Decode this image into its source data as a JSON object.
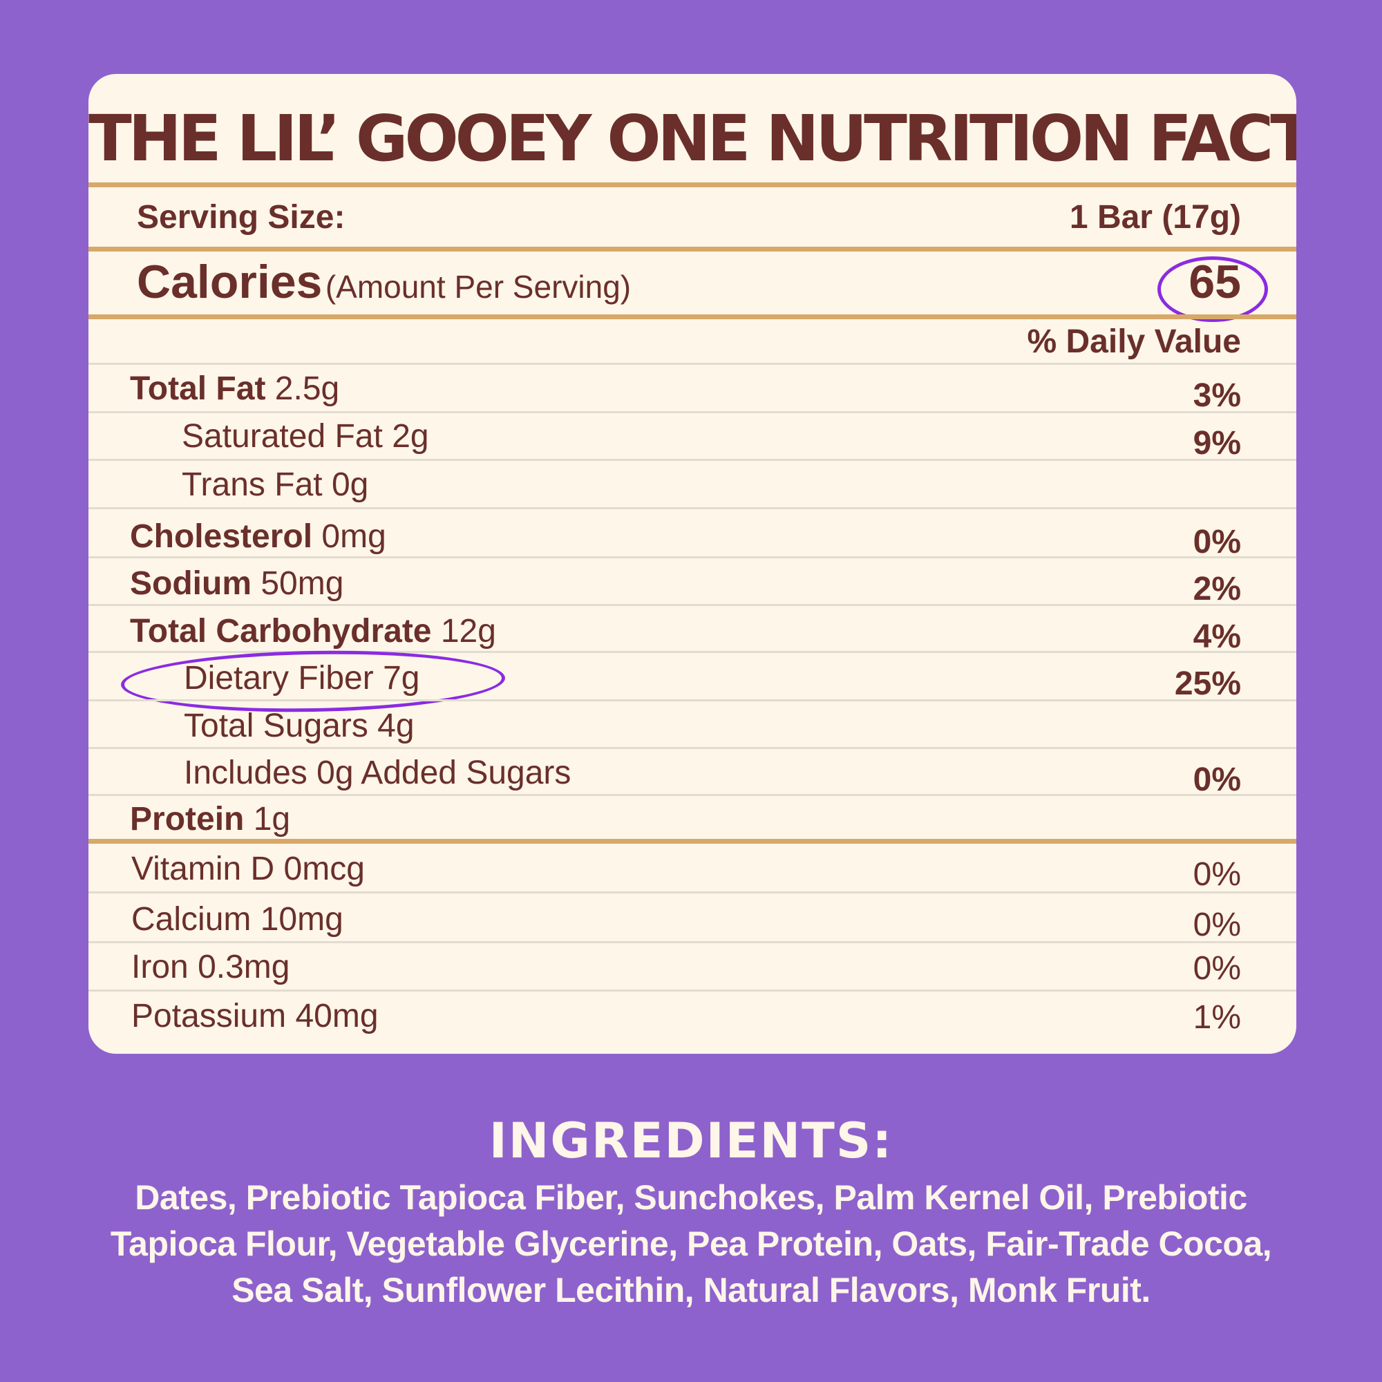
{
  "title": "THE LIL’ GOOEY ONE NUTRITION FACTS",
  "serving": {
    "label": "Serving Size:",
    "value": "1 Bar (17g)"
  },
  "calories": {
    "label": "Calories",
    "sub": "(Amount Per Serving)",
    "value": "65"
  },
  "daily_value_header": "% Daily Value",
  "nutrients": [
    {
      "name": "Total Fat",
      "amount": "2.5g",
      "dv": "3%"
    },
    {
      "name": "Saturated Fat",
      "amount": "2g",
      "dv": "9%"
    },
    {
      "name": "Trans Fat",
      "amount": "0g",
      "dv": ""
    },
    {
      "name": "Cholesterol",
      "amount": "0mg",
      "dv": "0%"
    },
    {
      "name": "Sodium",
      "amount": "50mg",
      "dv": "2%"
    },
    {
      "name": "Total Carbohydrate",
      "amount": "12g",
      "dv": "4%"
    },
    {
      "name": "Dietary Fiber",
      "amount": "7g",
      "dv": "25%"
    },
    {
      "name": "Total Sugars",
      "amount": "4g",
      "dv": ""
    },
    {
      "name": "Includes 0g Added Sugars",
      "amount": "",
      "dv": "0%"
    },
    {
      "name": "Protein",
      "amount": "1g",
      "dv": ""
    }
  ],
  "vitamins": [
    {
      "name": "Vitamin D",
      "amount": "0mcg",
      "dv": "0%"
    },
    {
      "name": "Calcium",
      "amount": "10mg",
      "dv": "0%"
    },
    {
      "name": "Iron",
      "amount": "0.3mg",
      "dv": "0%"
    },
    {
      "name": "Potassium",
      "amount": "40mg",
      "dv": "1%"
    }
  ],
  "ingredients": {
    "title": "INGREDIENTS:",
    "text": "Dates, Prebiotic Tapioca Fiber, Sunchokes, Palm Kernel Oil, Prebiotic Tapioca Flour, Vegetable Glycerine, Pea Protein, Oats, Fair-Trade Cocoa, Sea Salt, Sunflower Lecithin, Natural Flavors, Monk Fruit."
  },
  "colors": {
    "background": "#8e62cc",
    "card": "#fdf6e9",
    "text": "#6a2f2b",
    "rule": "#d8a868",
    "highlight": "#8a2be2"
  }
}
